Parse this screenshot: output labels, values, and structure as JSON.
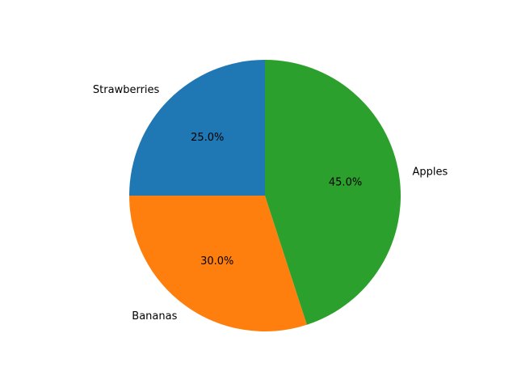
{
  "chart_data": {
    "type": "pie",
    "slices": [
      {
        "label": "Strawberries",
        "value": 25.0,
        "pct_label": "25.0%",
        "color": "#1f77b4"
      },
      {
        "label": "Bananas",
        "value": 30.0,
        "pct_label": "30.0%",
        "color": "#ff7f0e"
      },
      {
        "label": "Apples",
        "value": 45.0,
        "pct_label": "45.0%",
        "color": "#2ca02c"
      }
    ],
    "start_angle_deg": 90,
    "direction": "counterclockwise",
    "title": ""
  }
}
